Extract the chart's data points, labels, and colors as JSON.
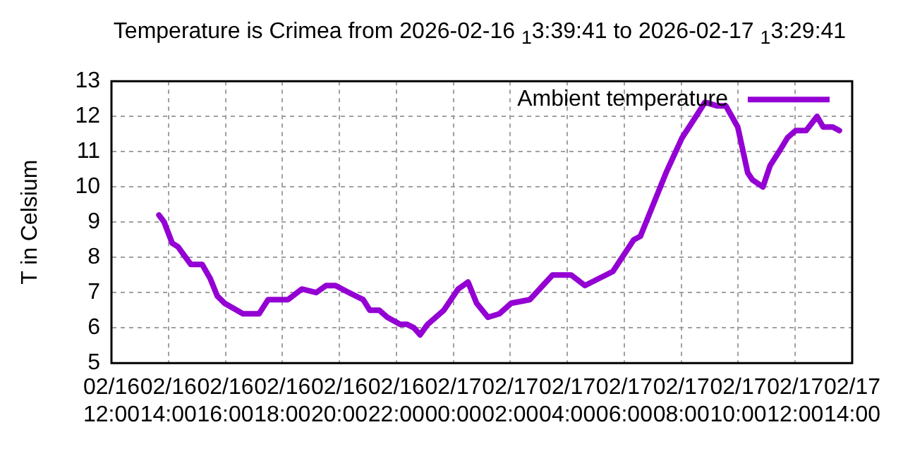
{
  "chart_data": {
    "type": "line",
    "title": "Temperature is Crimea from 2026-02-16 $_{1}$3:39:41 to 2026-02-17 $_{1}$3:29:41",
    "ylabel": "T in Celsium",
    "xlim": [
      "2026-02-16T12:00",
      "2026-02-17T14:00"
    ],
    "xticks": [
      {
        "value": "2026-02-16T12:00",
        "label": "02/16\n12:00"
      },
      {
        "value": "2026-02-16T14:00",
        "label": "02/16\n14:00"
      },
      {
        "value": "2026-02-16T16:00",
        "label": "02/16\n16:00"
      },
      {
        "value": "2026-02-16T18:00",
        "label": "02/16\n18:00"
      },
      {
        "value": "2026-02-16T20:00",
        "label": "02/16\n20:00"
      },
      {
        "value": "2026-02-16T22:00",
        "label": "02/16\n22:00"
      },
      {
        "value": "2026-02-17T00:00",
        "label": "02/17\n00:00"
      },
      {
        "value": "2026-02-17T02:00",
        "label": "02/17\n02:00"
      },
      {
        "value": "2026-02-17T04:00",
        "label": "02/17\n04:00"
      },
      {
        "value": "2026-02-17T06:00",
        "label": "02/17\n06:00"
      },
      {
        "value": "2026-02-17T08:00",
        "label": "02/17\n08:00"
      },
      {
        "value": "2026-02-17T10:00",
        "label": "02/17\n10:00"
      },
      {
        "value": "2026-02-17T12:00",
        "label": "02/17\n12:00"
      },
      {
        "value": "2026-02-17T14:00",
        "label": "02/17\n14:00"
      }
    ],
    "ylim": [
      5,
      13
    ],
    "yticks": [
      5,
      6,
      7,
      8,
      9,
      10,
      11,
      12,
      13
    ],
    "grid": true,
    "legend": "top right",
    "line_style": "solid",
    "marker": "none",
    "series": [
      {
        "name": "Ambient temperature",
        "color": "#9400d3",
        "x": [
          "2026-02-16T13:40",
          "2026-02-16T13:51",
          "2026-02-16T14:08",
          "2026-02-16T14:20",
          "2026-02-16T14:47",
          "2026-02-16T15:11",
          "2026-02-16T15:28",
          "2026-02-16T15:43",
          "2026-02-16T15:58",
          "2026-02-16T16:37",
          "2026-02-16T17:11",
          "2026-02-16T17:30",
          "2026-02-16T18:12",
          "2026-02-16T18:41",
          "2026-02-16T19:11",
          "2026-02-16T19:32",
          "2026-02-16T19:52",
          "2026-02-16T20:20",
          "2026-02-16T20:50",
          "2026-02-16T21:04",
          "2026-02-16T21:24",
          "2026-02-16T21:41",
          "2026-02-16T22:08",
          "2026-02-16T22:22",
          "2026-02-16T22:37",
          "2026-02-16T22:50",
          "2026-02-16T23:06",
          "2026-02-16T23:40",
          "2026-02-17T00:10",
          "2026-02-17T00:31",
          "2026-02-17T00:49",
          "2026-02-17T01:13",
          "2026-02-17T01:37",
          "2026-02-17T02:02",
          "2026-02-17T02:41",
          "2026-02-17T03:29",
          "2026-02-17T04:08",
          "2026-02-17T04:37",
          "2026-02-17T05:36",
          "2026-02-17T06:20",
          "2026-02-17T06:34",
          "2026-02-17T07:04",
          "2026-02-17T07:28",
          "2026-02-17T08:02",
          "2026-02-17T08:31",
          "2026-02-17T08:50",
          "2026-02-17T09:15",
          "2026-02-17T09:34",
          "2026-02-17T09:59",
          "2026-02-17T10:20",
          "2026-02-17T10:30",
          "2026-02-17T10:52",
          "2026-02-17T11:07",
          "2026-02-17T11:26",
          "2026-02-17T11:44",
          "2026-02-17T12:01",
          "2026-02-17T12:23",
          "2026-02-17T12:46",
          "2026-02-17T12:59",
          "2026-02-17T13:19",
          "2026-02-17T13:33"
        ],
        "values": [
          9.2,
          9.0,
          8.4,
          8.3,
          7.8,
          7.8,
          7.4,
          6.9,
          6.7,
          6.4,
          6.4,
          6.8,
          6.8,
          7.1,
          7.0,
          7.2,
          7.2,
          7.0,
          6.8,
          6.5,
          6.5,
          6.3,
          6.1,
          6.1,
          6.0,
          5.8,
          6.1,
          6.5,
          7.1,
          7.3,
          6.7,
          6.3,
          6.4,
          6.7,
          6.8,
          7.5,
          7.5,
          7.2,
          7.6,
          8.5,
          8.6,
          9.6,
          10.4,
          11.4,
          12.0,
          12.4,
          12.3,
          12.3,
          11.7,
          10.4,
          10.2,
          10.0,
          10.6,
          11.0,
          11.4,
          11.6,
          11.6,
          12.0,
          11.7,
          11.7,
          11.6
        ]
      }
    ]
  }
}
